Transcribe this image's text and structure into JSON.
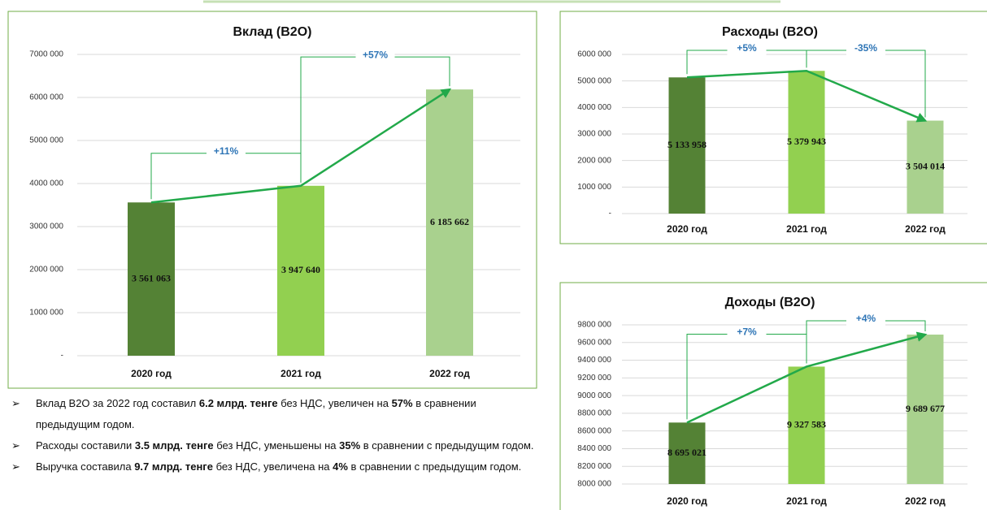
{
  "chart_data": [
    {
      "type": "bar",
      "title": "Вклад (B2O)",
      "categories": [
        "2020 год",
        "2021 год",
        "2022 год"
      ],
      "values": [
        3561063,
        3947640,
        6185662
      ],
      "value_labels": [
        "3 561 063",
        "3 947 640",
        "6 185 662"
      ],
      "colors": [
        "#548235",
        "#92d050",
        "#a9d18e"
      ],
      "ylim": [
        0,
        7000000
      ],
      "yticks": [
        {
          "value": 0,
          "label": "-"
        },
        {
          "value": 1000000,
          "label": "1000 000"
        },
        {
          "value": 2000000,
          "label": "2000 000"
        },
        {
          "value": 3000000,
          "label": "3000 000"
        },
        {
          "value": 4000000,
          "label": "4000 000"
        },
        {
          "value": 5000000,
          "label": "5000 000"
        },
        {
          "value": 6000000,
          "label": "6000 000"
        },
        {
          "value": 7000000,
          "label": "7000 000"
        }
      ],
      "grid": true,
      "annotations": [
        "+11%",
        "+57%"
      ]
    },
    {
      "type": "bar",
      "title": "Расходы (B2O)",
      "categories": [
        "2020 год",
        "2021 год",
        "2022 год"
      ],
      "values": [
        5133958,
        5379943,
        3504014
      ],
      "value_labels": [
        "5 133 958",
        "5 379 943",
        "3 504 014"
      ],
      "colors": [
        "#548235",
        "#92d050",
        "#a9d18e"
      ],
      "ylim": [
        0,
        6000000
      ],
      "yticks": [
        {
          "value": 0,
          "label": "-"
        },
        {
          "value": 1000000,
          "label": "1000 000"
        },
        {
          "value": 2000000,
          "label": "2000 000"
        },
        {
          "value": 3000000,
          "label": "3000 000"
        },
        {
          "value": 4000000,
          "label": "4000 000"
        },
        {
          "value": 5000000,
          "label": "5000 000"
        },
        {
          "value": 6000000,
          "label": "6000 000"
        }
      ],
      "grid": true,
      "annotations": [
        "+5%",
        "-35%"
      ]
    },
    {
      "type": "bar",
      "title": "Доходы (B2O)",
      "categories": [
        "2020 год",
        "2021 год",
        "2022 год"
      ],
      "values": [
        8695021,
        9327583,
        9689677
      ],
      "value_labels": [
        "8 695 021",
        "9 327 583",
        "9 689 677"
      ],
      "colors": [
        "#548235",
        "#92d050",
        "#a9d18e"
      ],
      "ylim": [
        8000000,
        9800000
      ],
      "yticks": [
        {
          "value": 8000000,
          "label": "8000 000"
        },
        {
          "value": 8200000,
          "label": "8200 000"
        },
        {
          "value": 8400000,
          "label": "8400 000"
        },
        {
          "value": 8600000,
          "label": "8600 000"
        },
        {
          "value": 8800000,
          "label": "8800 000"
        },
        {
          "value": 9000000,
          "label": "9000 000"
        },
        {
          "value": 9200000,
          "label": "9200 000"
        },
        {
          "value": 9400000,
          "label": "9400 000"
        },
        {
          "value": 9600000,
          "label": "9600 000"
        },
        {
          "value": 9800000,
          "label": "9800 000"
        }
      ],
      "grid": true,
      "annotations": [
        "+7%",
        "+4%"
      ]
    }
  ],
  "bullets": [
    [
      {
        "text": "Вклад B2O за 2022 год составил ",
        "bold": false
      },
      {
        "text": "6.2 млрд. тенге",
        "bold": true
      },
      {
        "text": " без НДС, увеличен на ",
        "bold": false
      },
      {
        "text": "57%",
        "bold": true
      },
      {
        "text": " в сравнении предыдущим годом.",
        "bold": false
      }
    ],
    [
      {
        "text": "Расходы составили ",
        "bold": false
      },
      {
        "text": "3.5 млрд. тенге",
        "bold": true
      },
      {
        "text": " без НДС, уменьшены на ",
        "bold": false
      },
      {
        "text": "35%",
        "bold": true
      },
      {
        "text": " в сравнении с предыдущим годом.",
        "bold": false
      }
    ],
    [
      {
        "text": "Выручка составила ",
        "bold": false
      },
      {
        "text": "9.7 млрд. тенге",
        "bold": true
      },
      {
        "text": " без НДС, увеличена на ",
        "bold": false
      },
      {
        "text": "4%",
        "bold": true
      },
      {
        "text": " в сравнении с предыдущим годом.",
        "bold": false
      }
    ]
  ]
}
